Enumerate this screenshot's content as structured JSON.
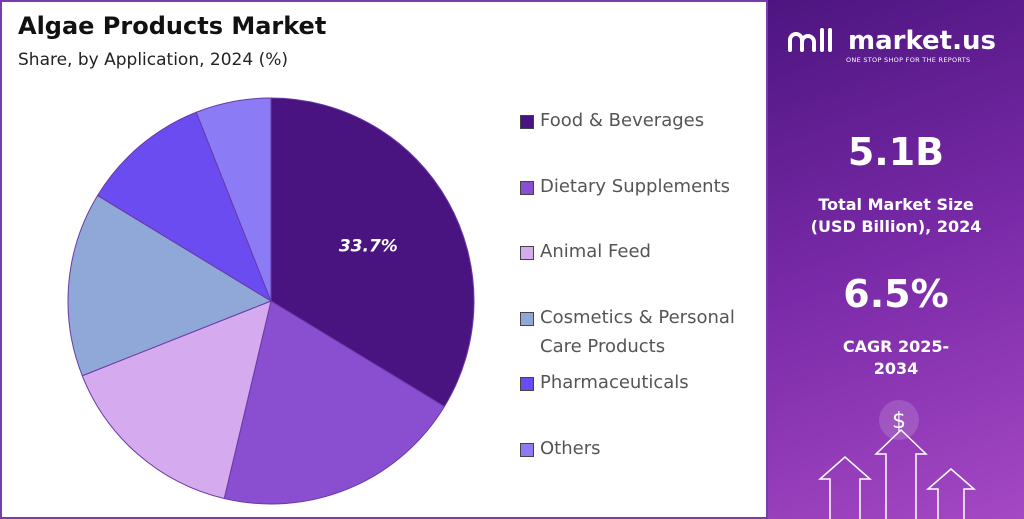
{
  "chart_data": {
    "type": "pie",
    "title": "Algae Products Market",
    "subtitle": "Share, by Application, 2024 (%)",
    "categories": [
      "Food & Beverages",
      "Dietary Supplements",
      "Animal Feed",
      "Cosmetics & Personal Care Products",
      "Pharmaceuticals",
      "Others"
    ],
    "values": [
      33.7,
      20,
      15.3,
      14.7,
      10.3,
      6
    ],
    "value_labels": [
      "33.7%",
      null,
      null,
      null,
      null,
      null
    ],
    "colors": [
      "#4a1480",
      "#8a4fd0",
      "#d6aaee",
      "#8fa8d8",
      "#6a4cf0",
      "#8b7cf5"
    ],
    "legend": "right"
  },
  "panel": {
    "brand": "market.us",
    "tagline": "ONE STOP SHOP FOR THE REPORTS",
    "market_size": "5.1B",
    "market_size_label": "Total Market Size (USD Billion), 2024",
    "cagr": "6.5%",
    "cagr_label": "CAGR 2025-2034"
  }
}
